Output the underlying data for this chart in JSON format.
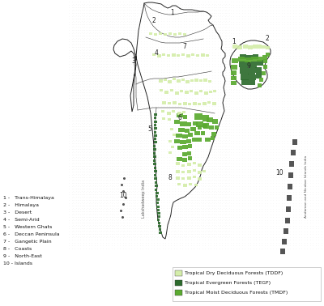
{
  "legend_items": [
    {
      "label": "Tropical Dry Deciduous Forests (TDDF)",
      "color": "#d4edaa"
    },
    {
      "label": "Tropical Evergreen Forests (TEGF)",
      "color": "#2d6b2d"
    },
    {
      "label": "Tropical Moist Deciduous Forests (TMDF)",
      "color": "#5aaa30"
    }
  ],
  "legend_text": [
    "1 -   Trans-Himalaya",
    "2 -   Himalaya",
    "3 -   Desert",
    "4 -   Semi-Arid",
    "5 -   Western Ghats",
    "6 -   Deccan Peninsula",
    "7 -   Gangetic Plain",
    "8 -   Coasts",
    "9 -   North-East",
    "10 - Islands"
  ],
  "fig_bg": "#ffffff",
  "map_bg": "#ffffff",
  "dot_color": "#cccccc",
  "border_color": "#333333"
}
